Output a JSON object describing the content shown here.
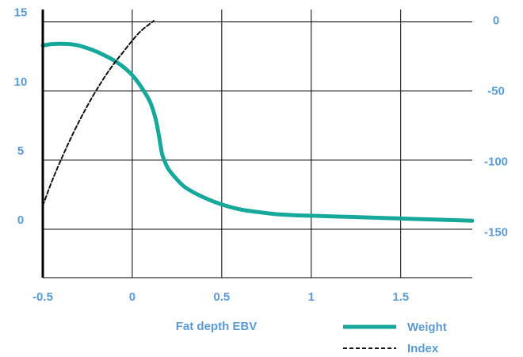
{
  "chart_data": {
    "type": "line",
    "title": "",
    "xlabel": "Fat depth EBV",
    "ylabel": "",
    "y2label": "",
    "xlim": [
      -0.5,
      1.9
    ],
    "ylim": [
      -3.5,
      15.9
    ],
    "y2lim": [
      -183,
      7
    ],
    "x_ticks": [
      -0.5,
      0,
      0.5,
      1,
      1.5
    ],
    "x_tick_labels": [
      "-0.5",
      "0",
      "0.5",
      "1",
      "1.5"
    ],
    "y_ticks": [
      0,
      5,
      10,
      15
    ],
    "y_tick_labels": [
      "0",
      "5",
      "10",
      "15"
    ],
    "y2_ticks": [
      0,
      -50,
      -100,
      -150
    ],
    "y2_tick_labels": [
      "0",
      "-50",
      "-100",
      "-150"
    ],
    "grid": true,
    "legend_position": "bottom-right",
    "colors": {
      "axis_text": "#5b9bd5",
      "weight": "#16a89a",
      "index": "#111111",
      "grid": "#000000"
    },
    "series": [
      {
        "name": "Weight",
        "axis": "left",
        "style": "solid",
        "x": [
          -0.5,
          -0.45,
          -0.4,
          -0.35,
          -0.3,
          -0.25,
          -0.2,
          -0.15,
          -0.1,
          -0.05,
          0.0,
          0.05,
          0.1,
          0.13,
          0.15,
          0.16,
          0.17,
          0.2,
          0.25,
          0.3,
          0.4,
          0.5,
          0.6,
          0.7,
          0.8,
          0.9,
          1.0,
          1.2,
          1.4,
          1.6,
          1.8,
          1.9
        ],
        "values": [
          13.3,
          13.4,
          13.42,
          13.4,
          13.3,
          13.1,
          12.85,
          12.55,
          12.2,
          11.75,
          11.15,
          10.3,
          9.2,
          8.0,
          6.7,
          5.9,
          5.3,
          4.4,
          3.6,
          3.0,
          2.3,
          1.8,
          1.45,
          1.25,
          1.1,
          1.02,
          0.98,
          0.9,
          0.82,
          0.74,
          0.66,
          0.62
        ]
      },
      {
        "name": "Index",
        "axis": "right",
        "style": "dashed",
        "x": [
          -0.5,
          -0.45,
          -0.4,
          -0.35,
          -0.3,
          -0.25,
          -0.2,
          -0.15,
          -0.1,
          -0.05,
          0.0,
          0.05,
          0.1,
          0.12
        ],
        "values": [
          -132,
          -115,
          -100,
          -86,
          -73,
          -61,
          -50,
          -40,
          -31,
          -23,
          -15,
          -8,
          -3,
          -1
        ]
      }
    ]
  }
}
